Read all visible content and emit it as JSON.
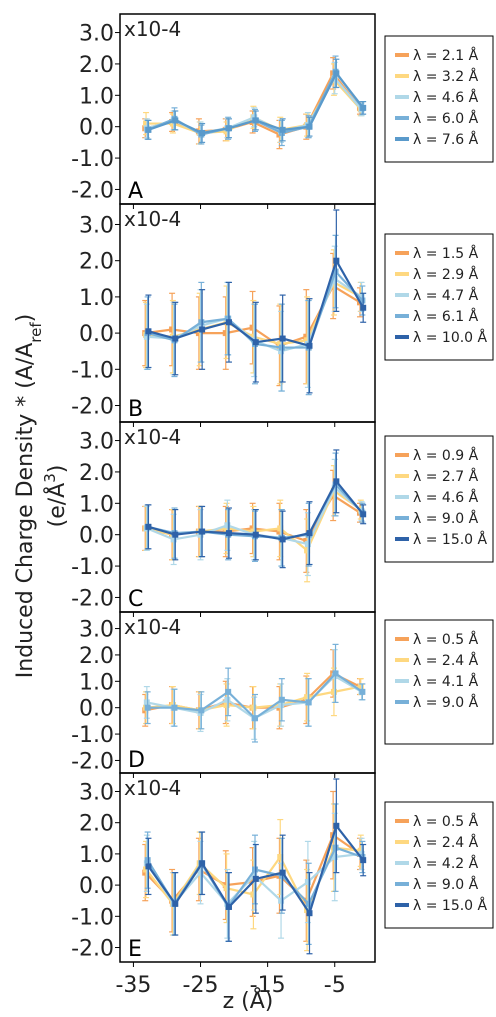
{
  "figure": {
    "ylabel_main": "Induced Charge Density * (A/A",
    "ylabel_sub": "ref",
    "ylabel_close": ")",
    "ylabel_units": "(e/Å",
    "ylabel_units_sup": "3",
    "ylabel_units_close": ")",
    "xlabel": "z (Å)"
  },
  "chart_data": [
    {
      "type": "line",
      "panel": "A",
      "multiplier": "x10-4",
      "x": [
        -33,
        -29,
        -25,
        -21,
        -17,
        -13,
        -9,
        -5,
        -1
      ],
      "xticks": [
        -35,
        -25,
        -15,
        -5
      ],
      "xlim": [
        -37,
        1
      ],
      "yticks": [
        3.0,
        2.0,
        1.0,
        0.0,
        -1.0,
        -2.0
      ],
      "ylim": [
        -2.4,
        3.4
      ],
      "series": [
        {
          "name": "λ = 2.1 Å",
          "color": "#f6a25a",
          "values": [
            -0.05,
            0.15,
            -0.15,
            -0.1,
            0.15,
            -0.25,
            0.0,
            1.7,
            0.6
          ],
          "err": [
            0.3,
            0.3,
            0.4,
            0.35,
            0.35,
            0.45,
            0.4,
            0.5,
            0.2
          ]
        },
        {
          "name": "λ = 3.2 Å",
          "color": "#fed880",
          "values": [
            0.1,
            0.1,
            -0.2,
            -0.15,
            0.3,
            -0.1,
            0.05,
            1.5,
            0.55
          ],
          "err": [
            0.35,
            0.3,
            0.35,
            0.3,
            0.35,
            0.4,
            0.35,
            0.5,
            0.2
          ]
        },
        {
          "name": "λ = 4.6 Å",
          "color": "#b0d8e8",
          "values": [
            -0.05,
            0.2,
            -0.2,
            -0.05,
            0.3,
            -0.15,
            0.05,
            1.55,
            0.55
          ],
          "err": [
            0.3,
            0.3,
            0.35,
            0.3,
            0.3,
            0.35,
            0.4,
            0.5,
            0.2
          ]
        },
        {
          "name": "λ = 6.0 Å",
          "color": "#77b0d8",
          "values": [
            -0.1,
            0.25,
            -0.25,
            -0.05,
            0.2,
            -0.2,
            0.0,
            1.75,
            0.6
          ],
          "err": [
            0.3,
            0.35,
            0.3,
            0.35,
            0.35,
            0.4,
            0.35,
            0.5,
            0.2
          ]
        },
        {
          "name": "λ = 7.6 Å",
          "color": "#5a9acb",
          "values": [
            -0.1,
            0.2,
            -0.2,
            -0.05,
            0.2,
            -0.1,
            0.0,
            1.7,
            0.6
          ],
          "err": [
            0.3,
            0.3,
            0.3,
            0.3,
            0.3,
            0.35,
            0.3,
            0.45,
            0.2
          ]
        }
      ]
    },
    {
      "type": "line",
      "panel": "B",
      "multiplier": "x10-4",
      "x": [
        -33,
        -29,
        -25,
        -21,
        -17,
        -13,
        -9,
        -5,
        -1
      ],
      "xticks": [
        -35,
        -25,
        -15,
        -5
      ],
      "xlim": [
        -37,
        1
      ],
      "yticks": [
        3.0,
        2.0,
        1.0,
        0.0,
        -1.0,
        -2.0
      ],
      "ylim": [
        -2.4,
        3.4
      ],
      "series": [
        {
          "name": "λ = 1.5 Å",
          "color": "#f6a25a",
          "values": [
            0.0,
            0.1,
            0.0,
            0.0,
            0.15,
            -0.35,
            -0.1,
            1.3,
            0.85
          ],
          "err": [
            0.9,
            1.0,
            1.0,
            1.0,
            1.0,
            1.1,
            1.3,
            0.9,
            0.4
          ]
        },
        {
          "name": "λ = 2.9 Å",
          "color": "#fed880",
          "values": [
            -0.05,
            -0.1,
            0.1,
            0.3,
            -0.1,
            -0.3,
            -0.2,
            1.4,
            1.0
          ],
          "err": [
            0.9,
            1.0,
            1.0,
            1.0,
            1.0,
            1.1,
            1.2,
            0.9,
            0.4
          ]
        },
        {
          "name": "λ = 4.7 Å",
          "color": "#b0d8e8",
          "values": [
            -0.1,
            -0.15,
            0.2,
            0.4,
            -0.2,
            -0.5,
            -0.3,
            1.5,
            1.0
          ],
          "err": [
            0.9,
            1.0,
            1.0,
            1.0,
            1.0,
            1.1,
            1.2,
            0.9,
            0.4
          ]
        },
        {
          "name": "λ = 6.1 Å",
          "color": "#77b0d8",
          "values": [
            0.0,
            -0.2,
            0.3,
            0.4,
            -0.3,
            -0.4,
            -0.4,
            1.7,
            0.9
          ],
          "err": [
            1.0,
            1.0,
            1.1,
            1.0,
            1.1,
            1.2,
            1.3,
            1.0,
            0.4
          ]
        },
        {
          "name": "λ = 10.0 Å",
          "color": "#2e62a8",
          "values": [
            0.05,
            -0.15,
            0.1,
            0.3,
            -0.25,
            -0.15,
            -0.35,
            2.0,
            0.7
          ],
          "err": [
            1.0,
            1.0,
            1.1,
            1.1,
            1.1,
            1.2,
            1.3,
            1.4,
            0.4
          ]
        }
      ]
    },
    {
      "type": "line",
      "panel": "C",
      "multiplier": "x10-4",
      "x": [
        -33,
        -29,
        -25,
        -21,
        -17,
        -13,
        -9,
        -5,
        -1
      ],
      "xticks": [
        -35,
        -25,
        -15,
        -5
      ],
      "xlim": [
        -37,
        1
      ],
      "yticks": [
        3.0,
        2.0,
        1.0,
        0.0,
        -1.0,
        -2.0
      ],
      "ylim": [
        -2.4,
        3.4
      ],
      "series": [
        {
          "name": "λ = 0.9 Å",
          "color": "#f6a25a",
          "values": [
            0.2,
            0.0,
            0.1,
            0.1,
            0.2,
            0.1,
            -0.2,
            1.25,
            0.7
          ],
          "err": [
            0.7,
            0.8,
            0.8,
            0.8,
            0.8,
            0.9,
            1.0,
            0.8,
            0.3
          ]
        },
        {
          "name": "λ = 2.7 Å",
          "color": "#fed880",
          "values": [
            0.2,
            0.0,
            0.1,
            0.2,
            0.1,
            0.2,
            -0.5,
            1.4,
            0.8
          ],
          "err": [
            0.7,
            0.8,
            0.8,
            0.8,
            0.8,
            0.9,
            1.0,
            0.8,
            0.3
          ]
        },
        {
          "name": "λ = 4.6 Å",
          "color": "#b0d8e8",
          "values": [
            0.2,
            -0.15,
            0.0,
            0.3,
            0.0,
            -0.1,
            -0.3,
            1.5,
            0.75
          ],
          "err": [
            0.7,
            0.8,
            0.8,
            0.8,
            0.8,
            0.9,
            1.0,
            0.9,
            0.3
          ]
        },
        {
          "name": "λ = 9.0 Å",
          "color": "#77b0d8",
          "values": [
            0.25,
            0.05,
            0.1,
            0.0,
            -0.05,
            -0.1,
            0.0,
            1.6,
            0.7
          ],
          "err": [
            0.7,
            0.8,
            0.8,
            0.8,
            0.8,
            0.9,
            1.0,
            1.0,
            0.3
          ]
        },
        {
          "name": "λ = 15.0 Å",
          "color": "#2e62a8",
          "values": [
            0.25,
            0.0,
            0.1,
            0.05,
            0.0,
            -0.15,
            0.05,
            1.7,
            0.65
          ],
          "err": [
            0.7,
            0.8,
            0.8,
            0.8,
            0.8,
            0.9,
            1.0,
            1.0,
            0.3
          ]
        }
      ]
    },
    {
      "type": "line",
      "panel": "D",
      "multiplier": "x10-4",
      "x": [
        -33,
        -29,
        -25,
        -21,
        -17,
        -13,
        -9,
        -5,
        -1
      ],
      "xticks": [
        -35,
        -25,
        -15,
        -5
      ],
      "xlim": [
        -37,
        1
      ],
      "yticks": [
        3.0,
        2.0,
        1.0,
        0.0,
        -1.0,
        -2.0
      ],
      "ylim": [
        -2.4,
        3.4
      ],
      "series": [
        {
          "name": "λ = 0.5 Å",
          "color": "#f6a25a",
          "values": [
            -0.1,
            0.1,
            -0.1,
            0.2,
            0.0,
            0.0,
            0.3,
            1.3,
            0.8
          ],
          "err": [
            0.6,
            0.7,
            0.7,
            0.8,
            0.8,
            0.8,
            0.9,
            0.9,
            0.3
          ]
        },
        {
          "name": "λ = 2.4 Å",
          "color": "#fed880",
          "values": [
            0.0,
            0.1,
            -0.1,
            0.1,
            0.0,
            0.1,
            0.4,
            0.6,
            0.8
          ],
          "err": [
            0.6,
            0.7,
            0.7,
            0.8,
            0.8,
            0.8,
            0.9,
            0.9,
            0.3
          ]
        },
        {
          "name": "λ = 4.1 Å",
          "color": "#b0d8e8",
          "values": [
            0.2,
            0.0,
            -0.2,
            0.3,
            -0.4,
            0.1,
            0.2,
            1.2,
            0.6
          ],
          "err": [
            0.6,
            0.7,
            0.7,
            0.8,
            0.8,
            0.8,
            0.9,
            1.0,
            0.3
          ]
        },
        {
          "name": "λ = 9.0 Å",
          "color": "#77b0d8",
          "values": [
            0.0,
            0.0,
            -0.1,
            0.6,
            -0.4,
            0.3,
            0.2,
            1.3,
            0.6
          ],
          "err": [
            0.6,
            0.7,
            0.7,
            0.9,
            0.9,
            0.8,
            0.9,
            1.1,
            0.3
          ]
        }
      ]
    },
    {
      "type": "line",
      "panel": "E",
      "multiplier": "x10-4",
      "x": [
        -33,
        -29,
        -25,
        -21,
        -17,
        -13,
        -9,
        -5,
        -1
      ],
      "xticks": [
        -35,
        -25,
        -15,
        -5
      ],
      "xlim": [
        -37,
        1
      ],
      "yticks": [
        3.0,
        2.0,
        1.0,
        0.0,
        -1.0,
        -2.0
      ],
      "ylim": [
        -2.4,
        3.4
      ],
      "series": [
        {
          "name": "λ = 0.5 Å",
          "color": "#f6a25a",
          "values": [
            0.4,
            -0.5,
            0.5,
            0.0,
            0.1,
            0.3,
            -0.5,
            1.6,
            1.0
          ],
          "err": [
            0.9,
            1.0,
            1.0,
            1.1,
            1.1,
            1.2,
            1.3,
            1.4,
            0.5
          ]
        },
        {
          "name": "λ = 2.4 Å",
          "color": "#fed880",
          "values": [
            0.5,
            -0.6,
            0.7,
            -0.1,
            -0.3,
            0.9,
            -0.8,
            1.2,
            1.1
          ],
          "err": [
            0.9,
            1.0,
            1.0,
            1.1,
            1.1,
            1.2,
            1.3,
            1.4,
            0.5
          ]
        },
        {
          "name": "λ = 4.2 Å",
          "color": "#b0d8e8",
          "values": [
            0.7,
            -0.6,
            0.4,
            -0.6,
            0.3,
            -0.5,
            0.1,
            0.9,
            1.0
          ],
          "err": [
            0.9,
            1.0,
            1.0,
            1.1,
            1.1,
            1.2,
            1.3,
            1.4,
            0.5
          ]
        },
        {
          "name": "λ = 9.0 Å",
          "color": "#77b0d8",
          "values": [
            0.8,
            -0.6,
            0.7,
            -0.7,
            0.5,
            0.3,
            -0.6,
            1.2,
            0.9
          ],
          "err": [
            0.9,
            1.0,
            1.0,
            1.1,
            1.1,
            1.2,
            1.3,
            1.4,
            0.5
          ]
        },
        {
          "name": "λ = 15.0 Å",
          "color": "#2e62a8",
          "values": [
            0.6,
            -0.6,
            0.7,
            -0.7,
            0.2,
            0.4,
            -0.9,
            1.9,
            0.8
          ],
          "err": [
            0.9,
            1.0,
            1.0,
            1.1,
            1.1,
            1.2,
            1.3,
            1.5,
            0.5
          ]
        }
      ]
    }
  ]
}
